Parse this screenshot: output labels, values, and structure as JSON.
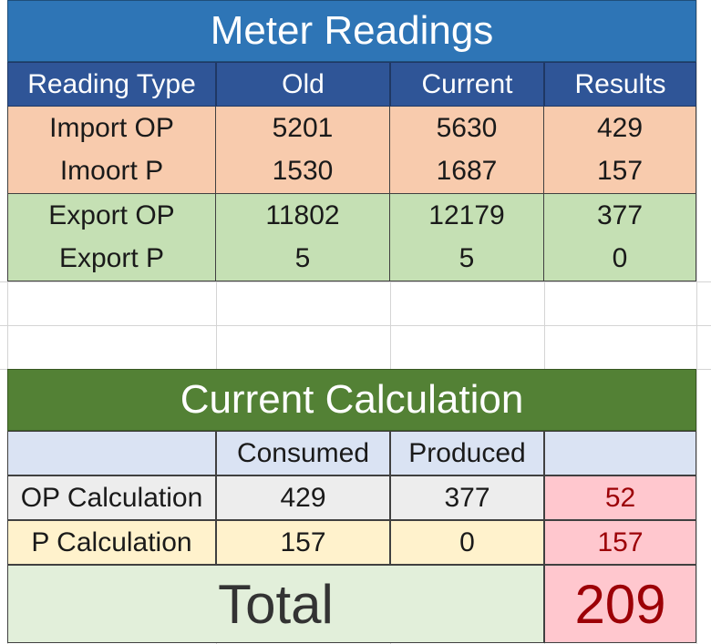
{
  "meter": {
    "title": "Meter Readings",
    "headers": [
      "Reading Type",
      "Old",
      "Current",
      "Results"
    ],
    "rows": [
      [
        "Import OP",
        "5201",
        "5630",
        "429"
      ],
      [
        "Imoort P",
        "1530",
        "1687",
        "157"
      ],
      [
        "Export OP",
        "11802",
        "12179",
        "377"
      ],
      [
        "Export P",
        "5",
        "5",
        "0"
      ]
    ]
  },
  "calc": {
    "title": "Current Calculation",
    "headers": [
      "",
      "Consumed",
      "Produced",
      ""
    ],
    "rows": [
      [
        "OP Calculation",
        "429",
        "377",
        "52"
      ],
      [
        "P Calculation",
        "157",
        "0",
        "157"
      ]
    ],
    "total_label": "Total",
    "total_value": "209"
  },
  "colors": {
    "meter_title_bg": "#2e75b6",
    "header_bg": "#2f5597",
    "import_bg": "#f8cbad",
    "export_bg": "#c5e0b4",
    "calc_title_bg": "#538135",
    "calc_header_bg": "#dae3f3",
    "result_bg": "#ffc7ce",
    "result_text": "#9c0006",
    "total_bg": "#e2efda"
  }
}
